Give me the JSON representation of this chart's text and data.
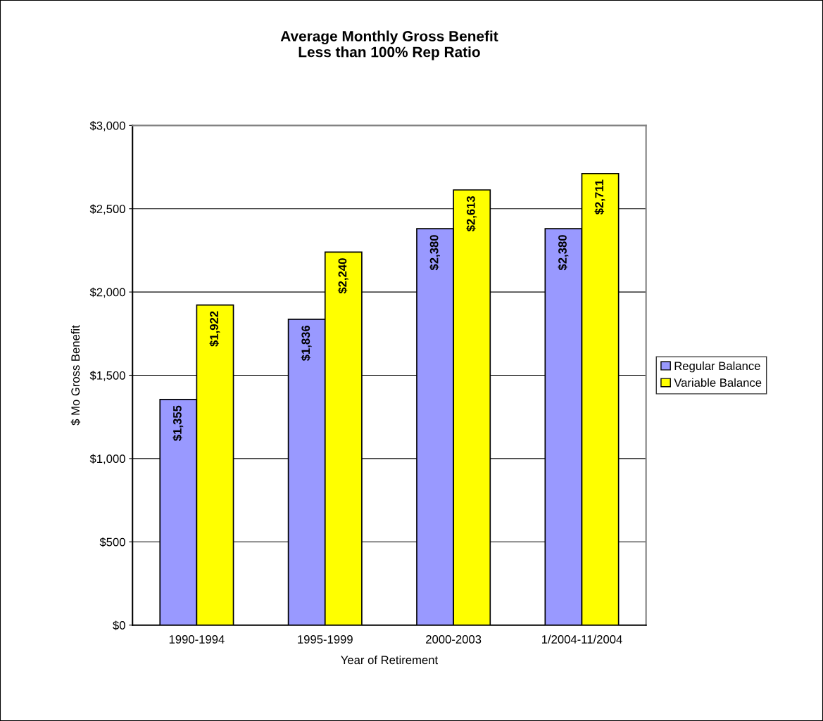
{
  "chart_data": {
    "type": "bar",
    "title": "Average Monthly Gross Benefit\nLess than 100% Rep Ratio",
    "xlabel": "Year of Retirement",
    "ylabel": "$ Mo Gross Benefit",
    "categories": [
      "1990-1994",
      "1995-1999",
      "2000-2003",
      "1/2004-11/2004"
    ],
    "series": [
      {
        "name": "Regular Balance",
        "color": "#9999ff",
        "values": [
          1355,
          1836,
          2380,
          2380
        ],
        "value_labels": [
          "$1,355",
          "$1,836",
          "$2,380",
          "$2,380"
        ]
      },
      {
        "name": "Variable Balance",
        "color": "#ffff00",
        "values": [
          1922,
          2240,
          2613,
          2711
        ],
        "value_labels": [
          "$1,922",
          "$2,240",
          "$2,613",
          "$2,711"
        ]
      }
    ],
    "ylim": [
      0,
      3000
    ],
    "yticks": [
      {
        "value": 0,
        "label": "$0"
      },
      {
        "value": 500,
        "label": "$500"
      },
      {
        "value": 1000,
        "label": "$1,000"
      },
      {
        "value": 1500,
        "label": "$1,500"
      },
      {
        "value": 2000,
        "label": "$2,000"
      },
      {
        "value": 2500,
        "label": "$2,500"
      },
      {
        "value": 3000,
        "label": "$3,000"
      }
    ],
    "grid": "y",
    "legend": "right"
  }
}
